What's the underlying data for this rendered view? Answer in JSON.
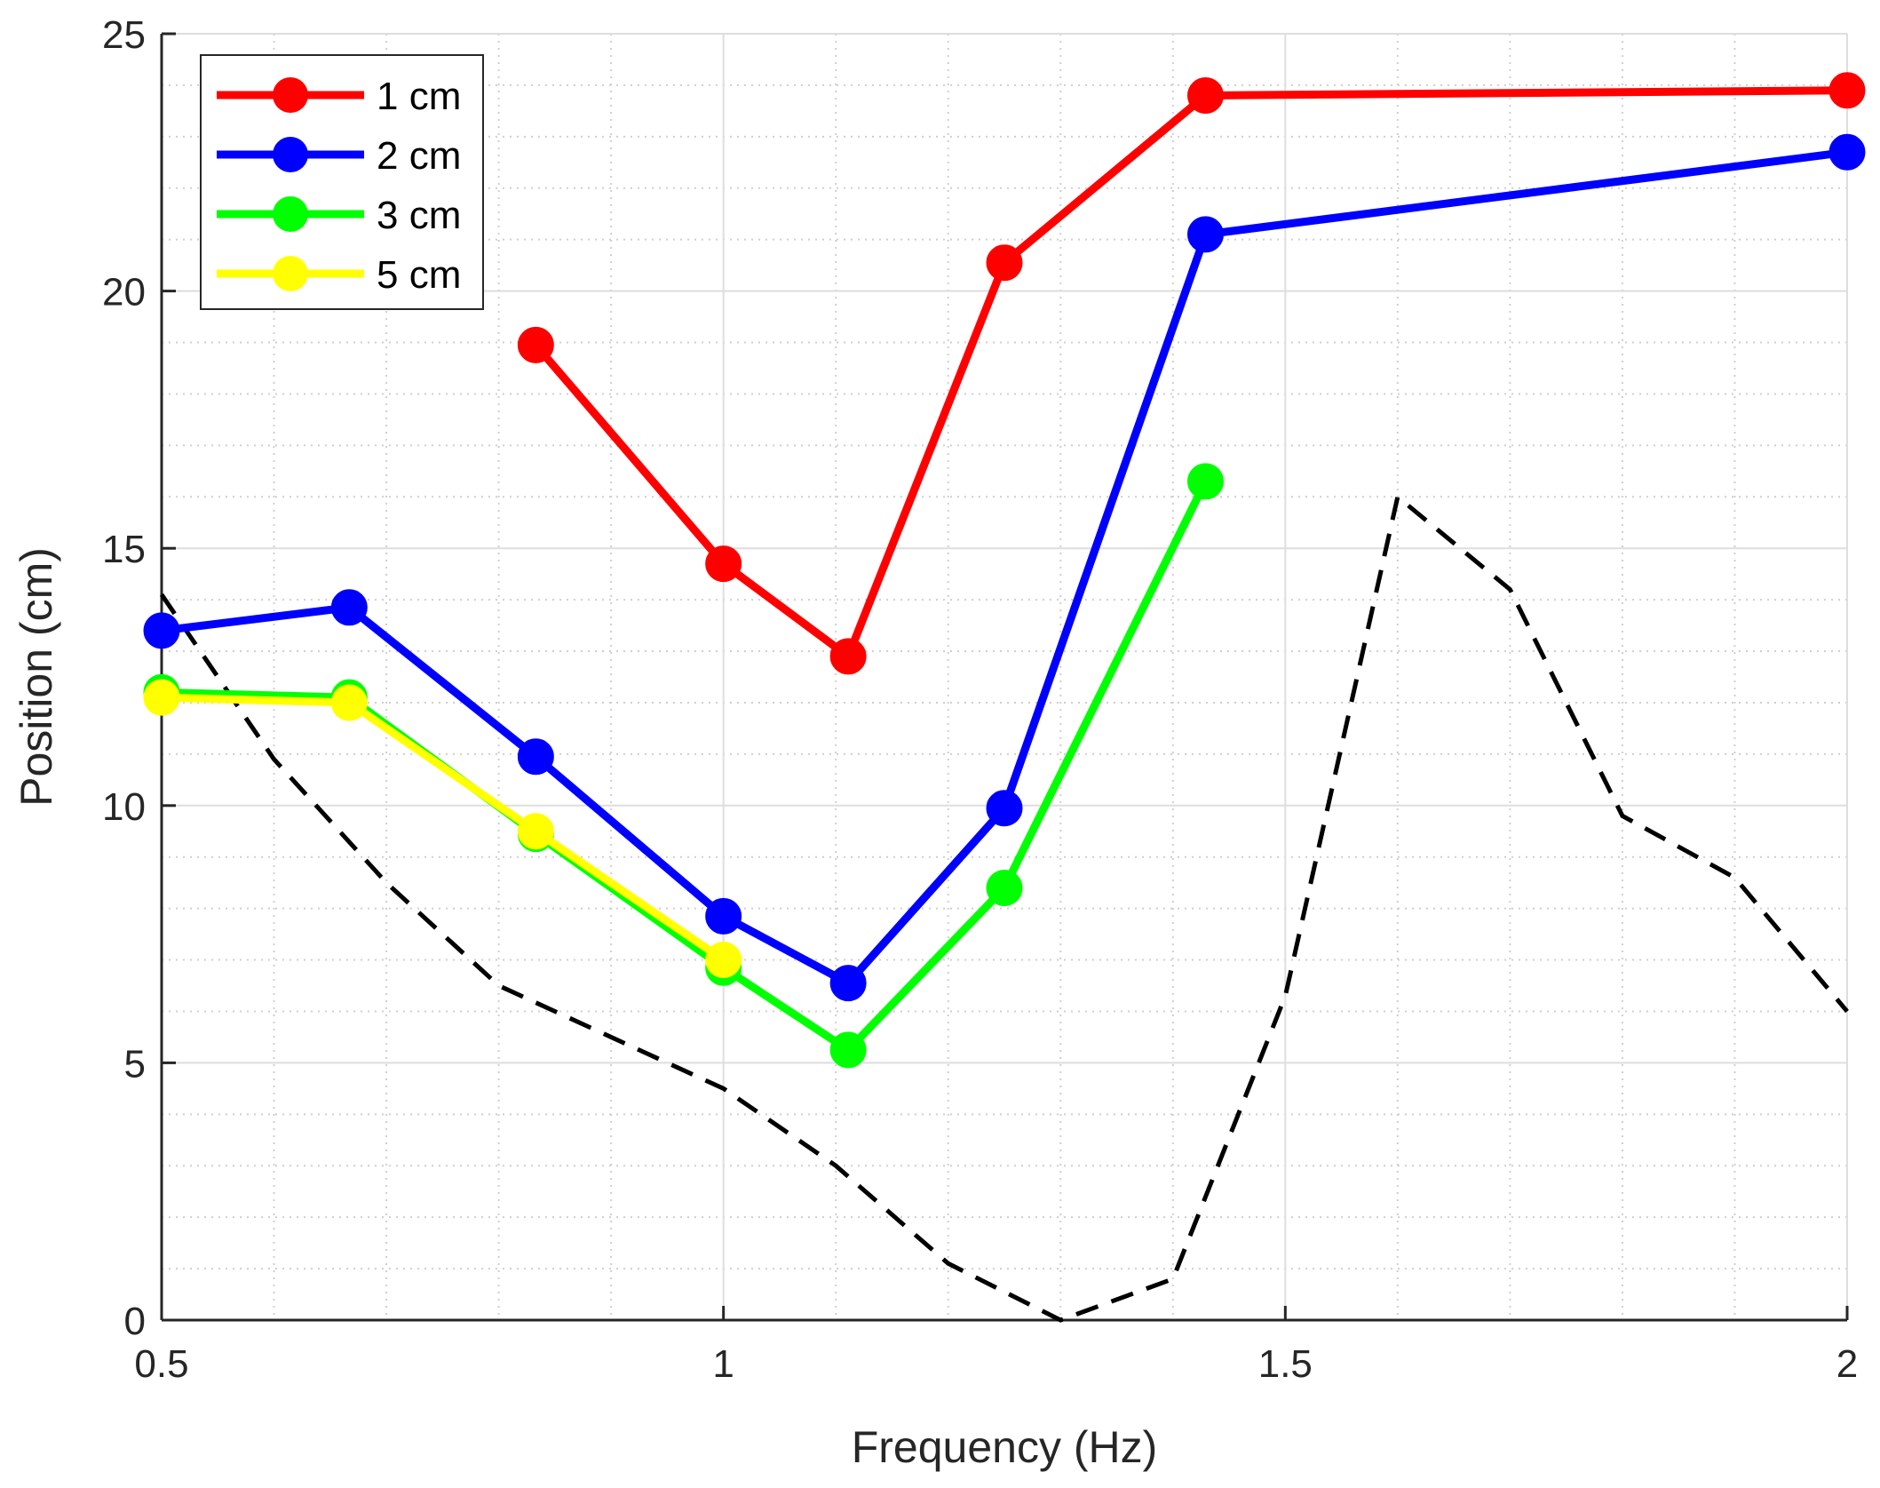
{
  "chart_data": {
    "type": "line",
    "title": "",
    "xlabel": "Frequency (Hz)",
    "ylabel": "Position (cm)",
    "xlim": [
      0.5,
      2
    ],
    "ylim": [
      0,
      25
    ],
    "xticks": [
      0.5,
      1,
      1.5,
      2
    ],
    "xtick_labels": [
      "0.5",
      "1",
      "1.5",
      "2"
    ],
    "yticks": [
      0,
      5,
      10,
      15,
      20,
      25
    ],
    "ytick_labels": [
      "0",
      "5",
      "10",
      "15",
      "20",
      "25"
    ],
    "x_minor_step": 0.1,
    "y_minor_step": 1,
    "grid": true,
    "legend_position": "top-left",
    "series": [
      {
        "name": "1 cm",
        "color": "#ff0000",
        "marker": "circle",
        "x": [
          0.833,
          1.0,
          1.111,
          1.25,
          1.429,
          2.0
        ],
        "y": [
          18.95,
          14.7,
          12.9,
          20.55,
          23.8,
          23.9
        ]
      },
      {
        "name": "2 cm",
        "color": "#0000ff",
        "marker": "circle",
        "x": [
          0.5,
          0.667,
          0.833,
          1.0,
          1.111,
          1.25,
          1.429,
          2.0
        ],
        "y": [
          13.4,
          13.85,
          10.95,
          7.85,
          6.55,
          9.95,
          21.1,
          22.7
        ]
      },
      {
        "name": "3 cm",
        "color": "#00ff00",
        "marker": "circle",
        "x": [
          0.5,
          0.667,
          0.833,
          1.0,
          1.111,
          1.25,
          1.429
        ],
        "y": [
          12.2,
          12.1,
          9.45,
          6.85,
          5.25,
          8.4,
          16.3
        ]
      },
      {
        "name": "5 cm",
        "color": "#ffff00",
        "marker": "circle",
        "x": [
          0.5,
          0.667,
          0.833,
          1.0
        ],
        "y": [
          12.1,
          12.0,
          9.5,
          7.0
        ]
      }
    ],
    "reference_line": {
      "style": "dashed",
      "color": "#000000",
      "x": [
        0.5,
        0.6,
        0.7,
        0.8,
        0.9,
        1.0,
        1.1,
        1.2,
        1.3,
        1.4,
        1.5,
        1.6,
        1.7,
        1.8,
        1.9,
        2.0
      ],
      "y": [
        14.1,
        10.9,
        8.5,
        6.5,
        5.5,
        4.5,
        3.0,
        1.1,
        0.0,
        0.8,
        6.3,
        16.0,
        14.2,
        9.8,
        8.6,
        6.0
      ]
    }
  }
}
